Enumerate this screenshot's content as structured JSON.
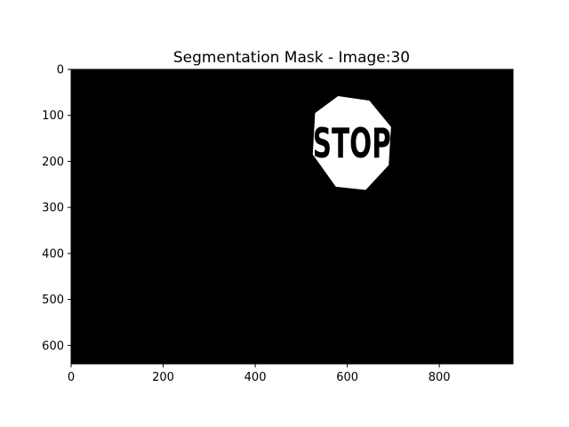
{
  "chart_data": {
    "type": "image",
    "title": "Segmentation Mask - Image:30",
    "xlabel": "",
    "ylabel": "",
    "xlim": [
      0,
      960
    ],
    "ylim": [
      640,
      0
    ],
    "x_ticks": [
      0,
      200,
      400,
      600,
      800
    ],
    "y_ticks": [
      0,
      100,
      200,
      300,
      400,
      500,
      600
    ],
    "background_color": "#000000",
    "mask_color": "#ffffff",
    "mask_region": {
      "label": "STOP",
      "polygon": [
        [
          580,
          58
        ],
        [
          648,
          68
        ],
        [
          695,
          125
        ],
        [
          690,
          208
        ],
        [
          640,
          262
        ],
        [
          575,
          255
        ],
        [
          525,
          185
        ],
        [
          530,
          95
        ]
      ]
    }
  }
}
